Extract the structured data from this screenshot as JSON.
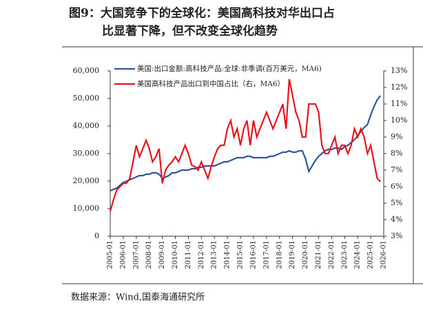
{
  "chart_data": {
    "type": "line",
    "title": [
      "图9：大国竞争下的全球化：美国高科技对华出口占",
      "比显著下降，但不改变全球化趋势"
    ],
    "source": "数据来源：Wind,国泰海通研究所",
    "x": [
      "2005-01",
      "2005-04",
      "2005-07",
      "2005-10",
      "2006-01",
      "2006-04",
      "2006-07",
      "2006-10",
      "2007-01",
      "2007-04",
      "2007-07",
      "2007-10",
      "2008-01",
      "2008-04",
      "2008-07",
      "2008-10",
      "2009-01",
      "2009-04",
      "2009-07",
      "2009-10",
      "2010-01",
      "2010-04",
      "2010-07",
      "2010-10",
      "2011-01",
      "2011-04",
      "2011-07",
      "2011-10",
      "2012-01",
      "2012-04",
      "2012-07",
      "2012-10",
      "2013-01",
      "2013-04",
      "2013-07",
      "2013-10",
      "2014-01",
      "2014-04",
      "2014-07",
      "2014-10",
      "2015-01",
      "2015-04",
      "2015-07",
      "2015-10",
      "2016-01",
      "2016-04",
      "2016-07",
      "2016-10",
      "2017-01",
      "2017-04",
      "2017-07",
      "2017-10",
      "2018-01",
      "2018-04",
      "2018-07",
      "2018-10",
      "2019-01",
      "2019-04",
      "2019-07",
      "2019-10",
      "2020-01",
      "2020-04",
      "2020-07",
      "2020-10",
      "2021-01",
      "2021-04",
      "2021-07",
      "2021-10",
      "2022-01",
      "2022-04",
      "2022-07",
      "2022-10",
      "2023-01",
      "2023-04",
      "2023-07",
      "2023-10",
      "2024-01",
      "2024-04",
      "2024-07",
      "2024-10",
      "2025-01",
      "2025-04",
      "2025-07",
      "2025-10"
    ],
    "series": [
      {
        "name": "美国:出口金额:高科技产品:全球:非季调(百万美元，MA6)",
        "color": "#2e5597",
        "values": [
          16500,
          17000,
          17500,
          18500,
          19500,
          20000,
          20500,
          21000,
          21500,
          22000,
          22000,
          22500,
          22500,
          23000,
          23000,
          22500,
          21000,
          21500,
          22000,
          23000,
          23000,
          23500,
          24000,
          24000,
          24000,
          24500,
          24500,
          25000,
          25000,
          25500,
          25500,
          25500,
          25500,
          26000,
          26500,
          27000,
          27000,
          27500,
          28000,
          28500,
          28500,
          28500,
          29000,
          29000,
          28500,
          28500,
          28500,
          28500,
          28500,
          29000,
          29000,
          29500,
          30000,
          30500,
          30500,
          31000,
          30500,
          30500,
          31000,
          31000,
          28000,
          23500,
          25500,
          27500,
          29000,
          30000,
          31000,
          31500,
          31500,
          32000,
          32000,
          31500,
          32500,
          33000,
          34000,
          35000,
          36500,
          38000,
          39500,
          40500,
          44000,
          47000,
          49500,
          51000
        ]
      },
      {
        "name": "美国高科技产品出口到中国占比（右，MA6）",
        "color": "#e8141b",
        "axis": "y2",
        "values": [
          4.5,
          5.2,
          5.8,
          6.0,
          6.2,
          6.2,
          6.5,
          7.5,
          8.5,
          7.8,
          8.3,
          8.8,
          8.3,
          7.5,
          7.8,
          8.3,
          6.2,
          7.0,
          7.3,
          7.5,
          7.8,
          7.5,
          8.0,
          8.5,
          8.0,
          7.3,
          7.2,
          7.0,
          7.5,
          7.0,
          6.5,
          7.2,
          7.8,
          8.3,
          8.5,
          8.5,
          9.5,
          10.0,
          9.0,
          9.5,
          8.5,
          9.5,
          10.0,
          8.5,
          10.0,
          9.0,
          9.5,
          10.0,
          10.5,
          10.0,
          9.5,
          10.0,
          10.5,
          11.0,
          9.5,
          12.5,
          11.5,
          10.5,
          10.0,
          9.0,
          9.0,
          11.0,
          11.0,
          11.0,
          10.5,
          8.5,
          8.0,
          8.0,
          8.5,
          9.0,
          8.0,
          8.5,
          8.5,
          8.0,
          8.5,
          9.5,
          9.0,
          9.5,
          9.0,
          8.0,
          8.5,
          7.5,
          6.5,
          6.3
        ]
      }
    ],
    "xlim": [
      "2005-01",
      "2026-01"
    ],
    "xticks": [
      "2005-01",
      "2006-01",
      "2007-01",
      "2008-01",
      "2009-01",
      "2010-01",
      "2011-01",
      "2012-01",
      "2013-01",
      "2014-01",
      "2015-01",
      "2016-01",
      "2017-01",
      "2018-01",
      "2019-01",
      "2020-01",
      "2021-01",
      "2022-01",
      "2023-01",
      "2024-01",
      "2025-01",
      "2026-01"
    ],
    "ylim": [
      0,
      60000
    ],
    "yticks": [
      0,
      {
        "value": 10000,
        "label": "10,000"
      },
      {
        "value": 20000,
        "label": "20,000"
      },
      {
        "value": 30000,
        "label": "30,000"
      },
      {
        "value": 40000,
        "label": "40,000"
      },
      {
        "value": 50000,
        "label": "50,000"
      },
      {
        "value": 60000,
        "label": "60,000"
      }
    ],
    "y2lim": [
      3,
      13
    ],
    "y2ticks": [
      {
        "value": 3,
        "label": "3%"
      },
      {
        "value": 4,
        "label": "4%"
      },
      {
        "value": 5,
        "label": "5%"
      },
      {
        "value": 6,
        "label": "6%"
      },
      {
        "value": 7,
        "label": "7%"
      },
      {
        "value": 8,
        "label": "8%"
      },
      {
        "value": 9,
        "label": "9%"
      },
      {
        "value": 10,
        "label": "10%"
      },
      {
        "value": 11,
        "label": "11%"
      },
      {
        "value": 12,
        "label": "12%"
      },
      {
        "value": 13,
        "label": "13%"
      }
    ],
    "legend": "upper left"
  }
}
